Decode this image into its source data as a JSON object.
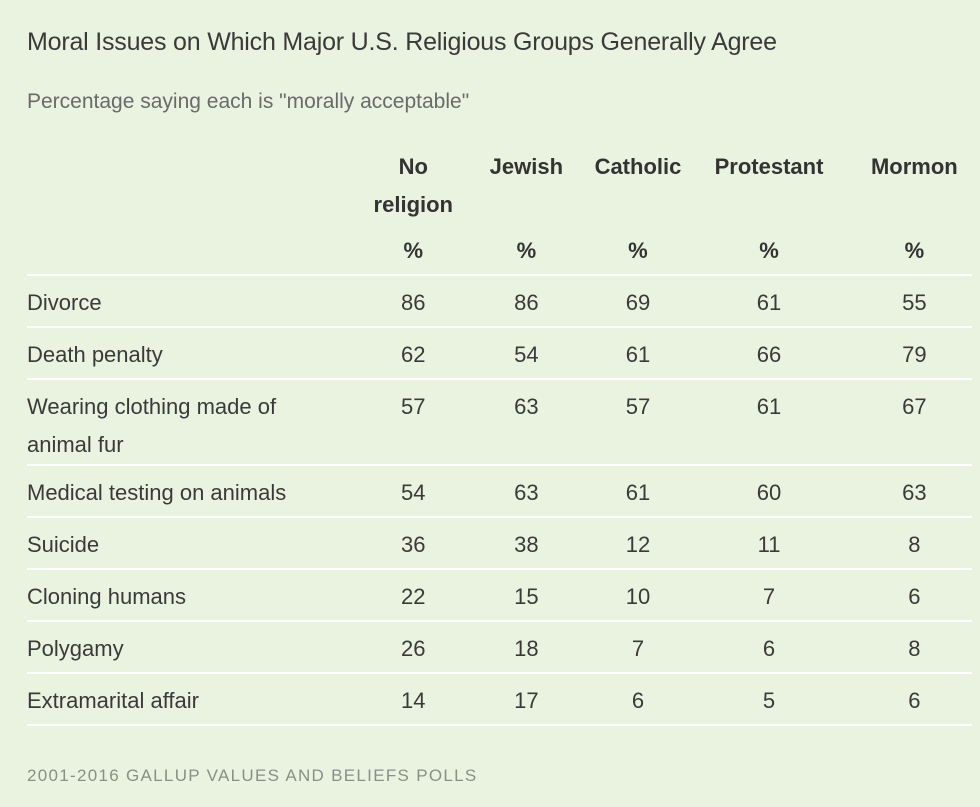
{
  "title": "Moral Issues on Which Major U.S. Religious Groups Generally Agree",
  "subtitle": "Percentage saying each is \"morally acceptable\"",
  "footer": "2001-2016 GALLUP VALUES AND BELIEFS POLLS",
  "colors": {
    "background": "#eaf2e0",
    "divider": "#ffffff"
  },
  "chart_data": {
    "type": "table",
    "title": "Moral Issues on Which Major U.S. Religious Groups Generally Agree",
    "subtitle": "Percentage saying each is \"morally acceptable\"",
    "columns": [
      {
        "line1": "No",
        "line2": "religion",
        "unit": "%"
      },
      {
        "line1": "Jewish",
        "line2": "",
        "unit": "%"
      },
      {
        "line1": "Catholic",
        "line2": "",
        "unit": "%"
      },
      {
        "line1": "Protestant",
        "line2": "",
        "unit": "%"
      },
      {
        "line1": "Mormon",
        "line2": "",
        "unit": "%"
      }
    ],
    "rows": [
      {
        "label_lines": [
          "Divorce"
        ],
        "values": [
          86,
          86,
          69,
          61,
          55
        ]
      },
      {
        "label_lines": [
          "Death penalty"
        ],
        "values": [
          62,
          54,
          61,
          66,
          79
        ]
      },
      {
        "label_lines": [
          "Wearing clothing made of",
          "animal fur"
        ],
        "values": [
          57,
          63,
          57,
          61,
          67
        ]
      },
      {
        "label_lines": [
          "Medical testing on animals"
        ],
        "values": [
          54,
          63,
          61,
          60,
          63
        ]
      },
      {
        "label_lines": [
          "Suicide"
        ],
        "values": [
          36,
          38,
          12,
          11,
          8
        ]
      },
      {
        "label_lines": [
          "Cloning humans"
        ],
        "values": [
          22,
          15,
          10,
          7,
          6
        ]
      },
      {
        "label_lines": [
          "Polygamy"
        ],
        "values": [
          26,
          18,
          7,
          6,
          8
        ]
      },
      {
        "label_lines": [
          "Extramarital affair"
        ],
        "values": [
          14,
          17,
          6,
          5,
          6
        ]
      }
    ],
    "source": "2001-2016 GALLUP VALUES AND BELIEFS POLLS"
  }
}
